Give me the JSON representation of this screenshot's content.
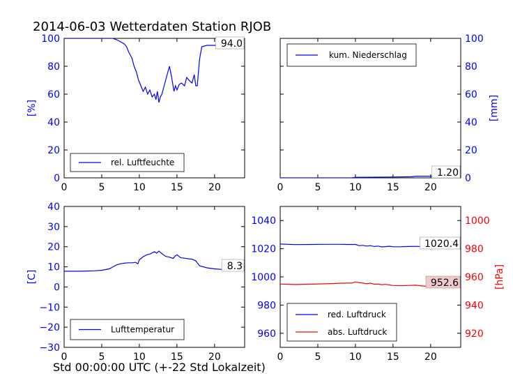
{
  "chart_data": {
    "title": "2014-06-03 Wetterdaten Station RJOB",
    "xlabel": "Std 00:00:00 UTC (+-22 Std Lokalzeit)",
    "colors": {
      "primary": "#0000ff",
      "secondary": "#ff0000"
    },
    "panels": [
      {
        "id": "humidity",
        "type": "line",
        "ylabel": "[%]",
        "ylim": [
          0,
          100
        ],
        "yticks": [
          0,
          20,
          40,
          60,
          80,
          100
        ],
        "xlim": [
          0,
          24
        ],
        "xticks": [
          0,
          5,
          10,
          15,
          20
        ],
        "legend": "rel. Luftfeuchte",
        "legend_position": "lower-left",
        "current_value": "94.0",
        "series": [
          {
            "name": "rel. Luftfeuchte",
            "x": [
              0,
              3,
              6.5,
              7,
              8,
              8.3,
              8.6,
              9,
              9.3,
              9.6,
              9.9,
              10.2,
              10.5,
              10.8,
              11.1,
              11.4,
              11.7,
              12,
              12.2,
              12.4,
              12.6,
              12.8,
              13,
              13.2,
              13.5,
              13.8,
              14,
              14.3,
              14.6,
              14.8,
              15,
              15.3,
              15.6,
              16,
              16.3,
              16.6,
              17,
              17.3,
              17.5,
              17.7,
              18,
              18.3,
              19,
              20,
              21,
              22,
              23,
              24
            ],
            "y": [
              100,
              100,
              100,
              99,
              96,
              94,
              90,
              86,
              80,
              76,
              70,
              66,
              62,
              65,
              60,
              63,
              58,
              60,
              56,
              62,
              54,
              58,
              60,
              64,
              70,
              76,
              80,
              72,
              62,
              66,
              63,
              67,
              68,
              66,
              72,
              70,
              68,
              74,
              66,
              66,
              85,
              94,
              95,
              95,
              95,
              94,
              95,
              94
            ]
          }
        ]
      },
      {
        "id": "precipitation",
        "type": "line",
        "ylabel": "[mm]",
        "ylim": [
          0,
          100
        ],
        "yticks": [
          0,
          20,
          40,
          60,
          80,
          100
        ],
        "xlim": [
          0,
          24
        ],
        "xticks": [
          0,
          5,
          10,
          15,
          20
        ],
        "legend": "kum. Niederschlag",
        "legend_position": "upper-left",
        "current_value": "1.20",
        "series": [
          {
            "name": "kum. Niederschlag",
            "x": [
              0,
              9.5,
              10,
              15,
              17.5,
              18,
              24
            ],
            "y": [
              0,
              0,
              0.4,
              0.6,
              0.8,
              1.2,
              1.2
            ]
          }
        ]
      },
      {
        "id": "temperature",
        "type": "line",
        "ylabel": "[C]",
        "ylim": [
          -30,
          40
        ],
        "yticks": [
          -30,
          -20,
          -10,
          0,
          10,
          20,
          30,
          40
        ],
        "xlim": [
          0,
          24
        ],
        "xticks": [
          0,
          5,
          10,
          15,
          20
        ],
        "legend": "Lufttemperatur",
        "legend_position": "lower-left",
        "current_value": "8.3",
        "series": [
          {
            "name": "Lufttemperatur",
            "x": [
              0,
              2,
              4,
              5,
              6,
              6.5,
              7,
              7.5,
              8,
              8.5,
              9,
              9.5,
              9.8,
              10,
              10.5,
              11,
              11.5,
              12,
              12.3,
              12.6,
              13,
              13.5,
              14,
              14.5,
              14.8,
              15,
              15.5,
              16,
              16.5,
              17,
              17.5,
              18,
              19,
              20,
              21,
              22,
              23,
              24
            ],
            "y": [
              7.8,
              7.8,
              8,
              8.3,
              9,
              10,
              11,
              11.5,
              11.8,
              12,
              12,
              12.2,
              11.5,
              13.5,
              15,
              16,
              16.5,
              17.5,
              16.8,
              17.8,
              16.5,
              15.2,
              14.8,
              14.2,
              15.5,
              16,
              14.5,
              14.3,
              14,
              13.8,
              13,
              10.5,
              9.5,
              9,
              8.7,
              8.5,
              8.3,
              8.3
            ]
          }
        ]
      },
      {
        "id": "pressure",
        "type": "line",
        "ylabel": "[hPa]",
        "ylim": [
          950,
          1050
        ],
        "yticks": [
          960,
          980,
          1000,
          1020,
          1040
        ],
        "y2lim": [
          910,
          1010
        ],
        "y2ticks": [
          920,
          940,
          960,
          980,
          1000
        ],
        "xlim": [
          0,
          24
        ],
        "xticks": [
          0,
          5,
          10,
          15,
          20
        ],
        "legend_position": "lower-left",
        "current_value": "1020.4",
        "current_value2": "952.6",
        "series": [
          {
            "name": "red. Luftdruck",
            "axis": "left",
            "x": [
              0,
              2,
              4,
              6,
              8,
              9,
              10,
              10.5,
              11,
              11.5,
              12,
              12.5,
              13,
              13.5,
              14,
              14.5,
              15,
              16,
              17,
              18,
              19,
              20,
              21,
              22,
              23,
              24
            ],
            "y": [
              1023.3,
              1022.9,
              1023.0,
              1023.1,
              1023.1,
              1023.0,
              1023.0,
              1022.2,
              1022.4,
              1021.9,
              1022.2,
              1021.6,
              1021.9,
              1021.3,
              1021.5,
              1021.8,
              1021.4,
              1021.4,
              1021.6,
              1021.7,
              1021.5,
              1021.6,
              1021.0,
              1020.8,
              1020.6,
              1020.4
            ]
          },
          {
            "name": "abs. Luftdruck",
            "axis": "right",
            "x": [
              0,
              2,
              4,
              6,
              8,
              9,
              9.5,
              10,
              10.5,
              11,
              11.5,
              12,
              12.5,
              13,
              13.5,
              14,
              14.5,
              15,
              16,
              17,
              18,
              19,
              20,
              21,
              22,
              23,
              24
            ],
            "y": [
              954.9,
              954.6,
              954.8,
              955.1,
              955.5,
              955.6,
              955.6,
              956.4,
              955.9,
              955.6,
              955.1,
              955.6,
              954.8,
              954.9,
              954.5,
              954.7,
              954.3,
              953.9,
              953.7,
              953.9,
              954.1,
              953.5,
              953.3,
              953.2,
              952.8,
              952.6,
              952.6
            ]
          }
        ]
      }
    ]
  }
}
